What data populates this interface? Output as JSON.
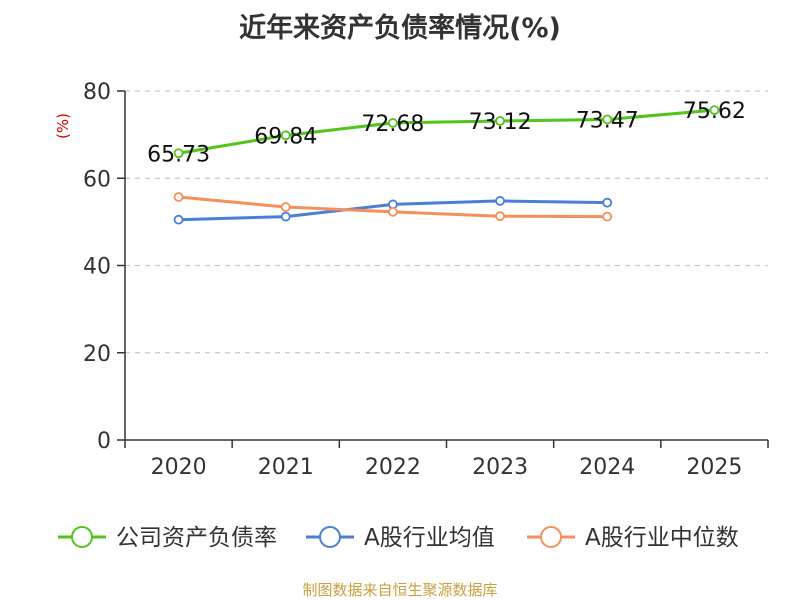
{
  "chart_data": {
    "type": "line",
    "title": "近年来资产负债率情况(%)",
    "ylabel": "(%)",
    "xlabel": "",
    "categories": [
      "2020",
      "2021",
      "2022",
      "2023",
      "2024",
      "2025"
    ],
    "ylim": [
      0,
      80
    ],
    "yticks": [
      0,
      20,
      40,
      60,
      80
    ],
    "grid": true,
    "legend_position": "bottom",
    "series": [
      {
        "name": "公司资产负债率",
        "color": "#52c41a",
        "values": [
          65.73,
          69.84,
          72.68,
          73.12,
          73.47,
          75.62
        ],
        "labels": [
          "65.73",
          "69.84",
          "72.68",
          "73.12",
          "73.47",
          "75.62"
        ]
      },
      {
        "name": "A股行业均值",
        "color": "#4a7fd8",
        "values": [
          50.5,
          51.2,
          54.0,
          54.8,
          54.4,
          null
        ]
      },
      {
        "name": "A股行业中位数",
        "color": "#f78f5c",
        "values": [
          55.7,
          53.4,
          52.3,
          51.3,
          51.2,
          null
        ]
      }
    ]
  },
  "source": "制图数据来自恒生聚源数据库"
}
